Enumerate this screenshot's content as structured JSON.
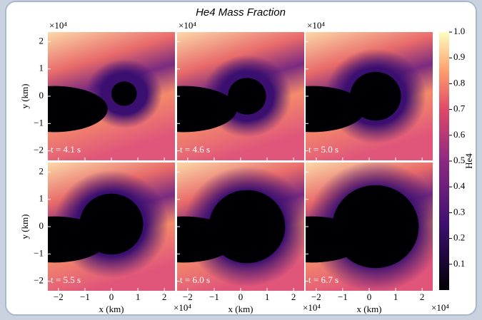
{
  "chart_data": {
    "type": "image-grid",
    "title": "He4 Mass Fraction",
    "panels": [
      {
        "label": "t = 4.1 s"
      },
      {
        "label": "t = 4.6 s"
      },
      {
        "label": "t = 5.0 s"
      },
      {
        "label": "t = 5.5 s"
      },
      {
        "label": "t = 6.0 s"
      },
      {
        "label": "t = 6.7 s"
      }
    ],
    "xlabel": "x  (km)",
    "ylabel": "y  (km)",
    "axis_multiplier": "×10⁴",
    "xlim": [
      -2.4,
      2.4
    ],
    "xticks": [
      {
        "value": -2,
        "label": "−2"
      },
      {
        "value": -1,
        "label": "−1"
      },
      0,
      1,
      2
    ],
    "ylim": [
      -2.35,
      2.35
    ],
    "yticks": [
      {
        "value": -2,
        "label": "−2"
      },
      {
        "value": -1,
        "label": "−1"
      },
      0,
      1,
      2
    ],
    "colorbar": {
      "label": "He4",
      "lim": [
        0,
        1
      ],
      "ticks": [
        0.1,
        0.2,
        0.3,
        0.4,
        0.5,
        0.6,
        0.7,
        0.8,
        0.9,
        {
          "value": 1,
          "label": "1.0"
        }
      ]
    }
  }
}
